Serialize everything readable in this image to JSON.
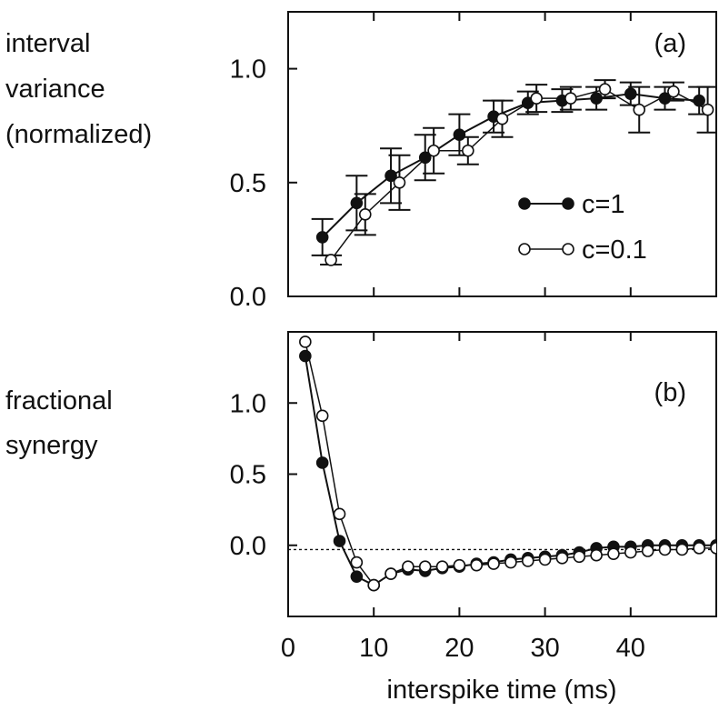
{
  "chart_data": [
    {
      "panel_label": "(a)",
      "type": "line",
      "ylabel_lines": [
        "interval",
        "variance",
        "(normalized)"
      ],
      "xlim": [
        0,
        50
      ],
      "ylim": [
        0,
        1.25
      ],
      "y_ticks": [
        0.0,
        0.5,
        1.0
      ],
      "y_tick_labels": [
        "0.0",
        "0.5",
        "1.0"
      ],
      "x_ticks": [
        0,
        10,
        20,
        30,
        40
      ],
      "legend_position": "center-right",
      "series": [
        {
          "name": "c=1",
          "marker": "filled-circle",
          "x": [
            4,
            8,
            12,
            16,
            20,
            24,
            28,
            32,
            36,
            40,
            44,
            48
          ],
          "y": [
            0.26,
            0.41,
            0.53,
            0.61,
            0.71,
            0.79,
            0.85,
            0.86,
            0.87,
            0.89,
            0.87,
            0.86
          ],
          "err": [
            0.08,
            0.12,
            0.12,
            0.1,
            0.09,
            0.07,
            0.05,
            0.05,
            0.05,
            0.05,
            0.05,
            0.06
          ],
          "color": "#111111"
        },
        {
          "name": "c=0.1",
          "marker": "open-circle",
          "x": [
            5,
            9,
            13,
            17,
            21,
            25,
            29,
            33,
            37,
            41,
            45,
            49
          ],
          "y": [
            0.16,
            0.36,
            0.5,
            0.64,
            0.64,
            0.78,
            0.87,
            0.87,
            0.91,
            0.82,
            0.9,
            0.82
          ],
          "err": [
            0.02,
            0.09,
            0.12,
            0.1,
            0.06,
            0.08,
            0.06,
            0.05,
            0.04,
            0.1,
            0.04,
            0.1
          ],
          "color": "#111111"
        }
      ]
    },
    {
      "panel_label": "(b)",
      "type": "line",
      "ylabel_lines": [
        "fractional",
        "synergy"
      ],
      "xlabel": "interspike time (ms)",
      "xlim": [
        0,
        50
      ],
      "ylim": [
        -0.5,
        1.5
      ],
      "y_ticks": [
        0.0,
        0.5,
        1.0
      ],
      "y_tick_labels": [
        "0.0",
        "0.5",
        "1.0"
      ],
      "x_ticks": [
        0,
        10,
        20,
        30,
        40
      ],
      "x_tick_labels": [
        "0",
        "10",
        "20",
        "30",
        "40"
      ],
      "reference_line": {
        "y": -0.03,
        "style": "dotted"
      },
      "series": [
        {
          "name": "c=1",
          "marker": "filled-circle",
          "x": [
            2,
            4,
            6,
            8,
            10,
            12,
            14,
            16,
            18,
            20,
            22,
            24,
            26,
            28,
            30,
            32,
            34,
            36,
            38,
            40,
            42,
            44,
            46,
            48,
            50
          ],
          "y": [
            1.33,
            0.58,
            0.03,
            -0.22,
            -0.28,
            -0.2,
            -0.17,
            -0.18,
            -0.16,
            -0.15,
            -0.13,
            -0.12,
            -0.1,
            -0.09,
            -0.08,
            -0.07,
            -0.05,
            -0.02,
            -0.01,
            -0.01,
            0.0,
            0.0,
            0.0,
            0.0,
            0.0
          ],
          "color": "#111111"
        },
        {
          "name": "c=0.1",
          "marker": "open-circle",
          "x": [
            2,
            4,
            6,
            8,
            10,
            12,
            14,
            16,
            18,
            20,
            22,
            24,
            26,
            28,
            30,
            32,
            34,
            36,
            38,
            40,
            42,
            44,
            46,
            48,
            50
          ],
          "y": [
            1.43,
            0.91,
            0.22,
            -0.12,
            -0.28,
            -0.2,
            -0.15,
            -0.15,
            -0.15,
            -0.14,
            -0.14,
            -0.13,
            -0.12,
            -0.11,
            -0.1,
            -0.09,
            -0.08,
            -0.07,
            -0.06,
            -0.05,
            -0.04,
            -0.03,
            -0.03,
            -0.02,
            -0.02
          ],
          "color": "#111111"
        }
      ]
    }
  ]
}
